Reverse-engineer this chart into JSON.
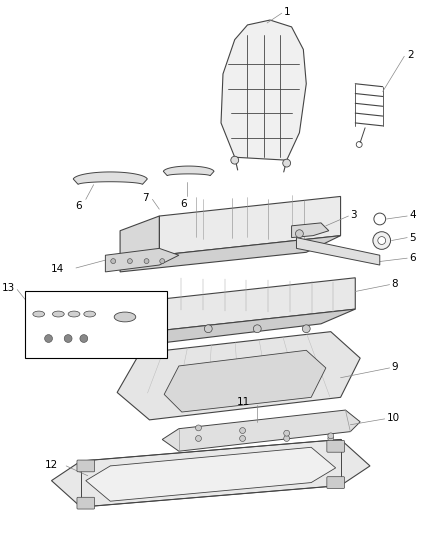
{
  "background_color": "#ffffff",
  "line_color": "#444444",
  "label_color": "#000000",
  "label_fontsize": 7.5,
  "leader_color": "#888888",
  "figsize": [
    4.38,
    5.33
  ],
  "dpi": 100
}
